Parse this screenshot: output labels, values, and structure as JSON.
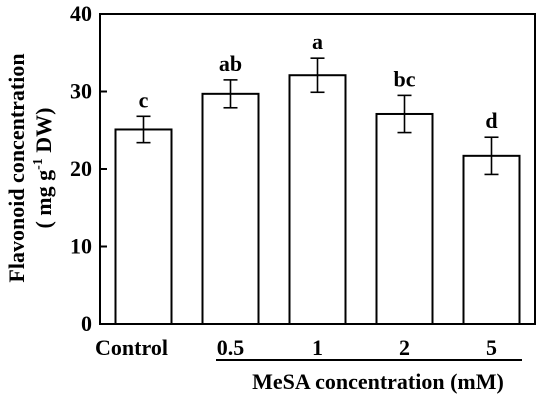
{
  "chart_data": {
    "type": "bar",
    "ylabel_line1": "Flavonoid concentration",
    "ylabel_line2": {
      "prefix": "( mg g",
      "superscript": "-1",
      "suffix": " DW)"
    },
    "xlabel": "MeSA concentration (mM)",
    "categories": [
      "Control",
      "0.5",
      "1",
      "2",
      "5"
    ],
    "values": [
      25.1,
      29.7,
      32.1,
      27.1,
      21.7
    ],
    "errors": [
      1.7,
      1.8,
      2.2,
      2.4,
      2.4
    ],
    "significance": [
      "c",
      "ab",
      "a",
      "bc",
      "d"
    ],
    "ylim": [
      0,
      40
    ],
    "yticks": [
      "0",
      "10",
      "20",
      "30",
      "40"
    ],
    "bar_fill": "#ffffff",
    "bar_stroke": "#000000"
  }
}
